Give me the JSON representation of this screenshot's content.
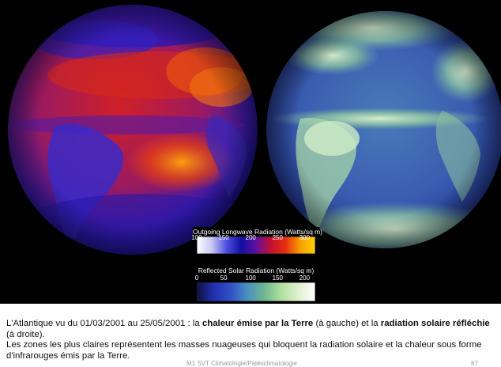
{
  "legend": {
    "olr": {
      "title": "Outgoing Longwave Radiation (Watts/sq m)",
      "ticks": [
        "100",
        "150",
        "200",
        "250",
        "300"
      ],
      "tick_values": [
        100,
        150,
        200,
        250,
        300
      ],
      "range": [
        100,
        320
      ],
      "colors": [
        "#ffffff",
        "#c8c8f0",
        "#5050e0",
        "#1010a0",
        "#6010a0",
        "#c01030",
        "#e83010",
        "#f8a000",
        "#ffd000"
      ]
    },
    "rsr": {
      "title": "Reflected Solar Radiation (Watts/sq m)",
      "ticks": [
        "0",
        "50",
        "100",
        "150",
        "200"
      ],
      "tick_values": [
        0,
        50,
        100,
        150,
        200
      ],
      "range": [
        0,
        220
      ],
      "colors": [
        "#101040",
        "#2030b0",
        "#3050c8",
        "#4a90c0",
        "#70b890",
        "#b0e0a0",
        "#e0f0d0",
        "#ffffff"
      ]
    }
  },
  "caption": {
    "line1_a": "L'Atlantique vu du 01/03/2001 au 25/05/2001 : la ",
    "line1_b": "chaleur émise par la Terre",
    "line1_c": " (à gauche) et la ",
    "line1_d": "radiation solaire réfléchie",
    "line1_e": " (à droite).",
    "line2": "Les zones les plus claires représentent les masses nuageuses qui bloquent la radiation solaire et la chaleur sous forme d'infrarouges émis par la Terre."
  },
  "footer": {
    "left": "M1 SVT Climatologie/Paléoclimatologie",
    "right": "87"
  }
}
